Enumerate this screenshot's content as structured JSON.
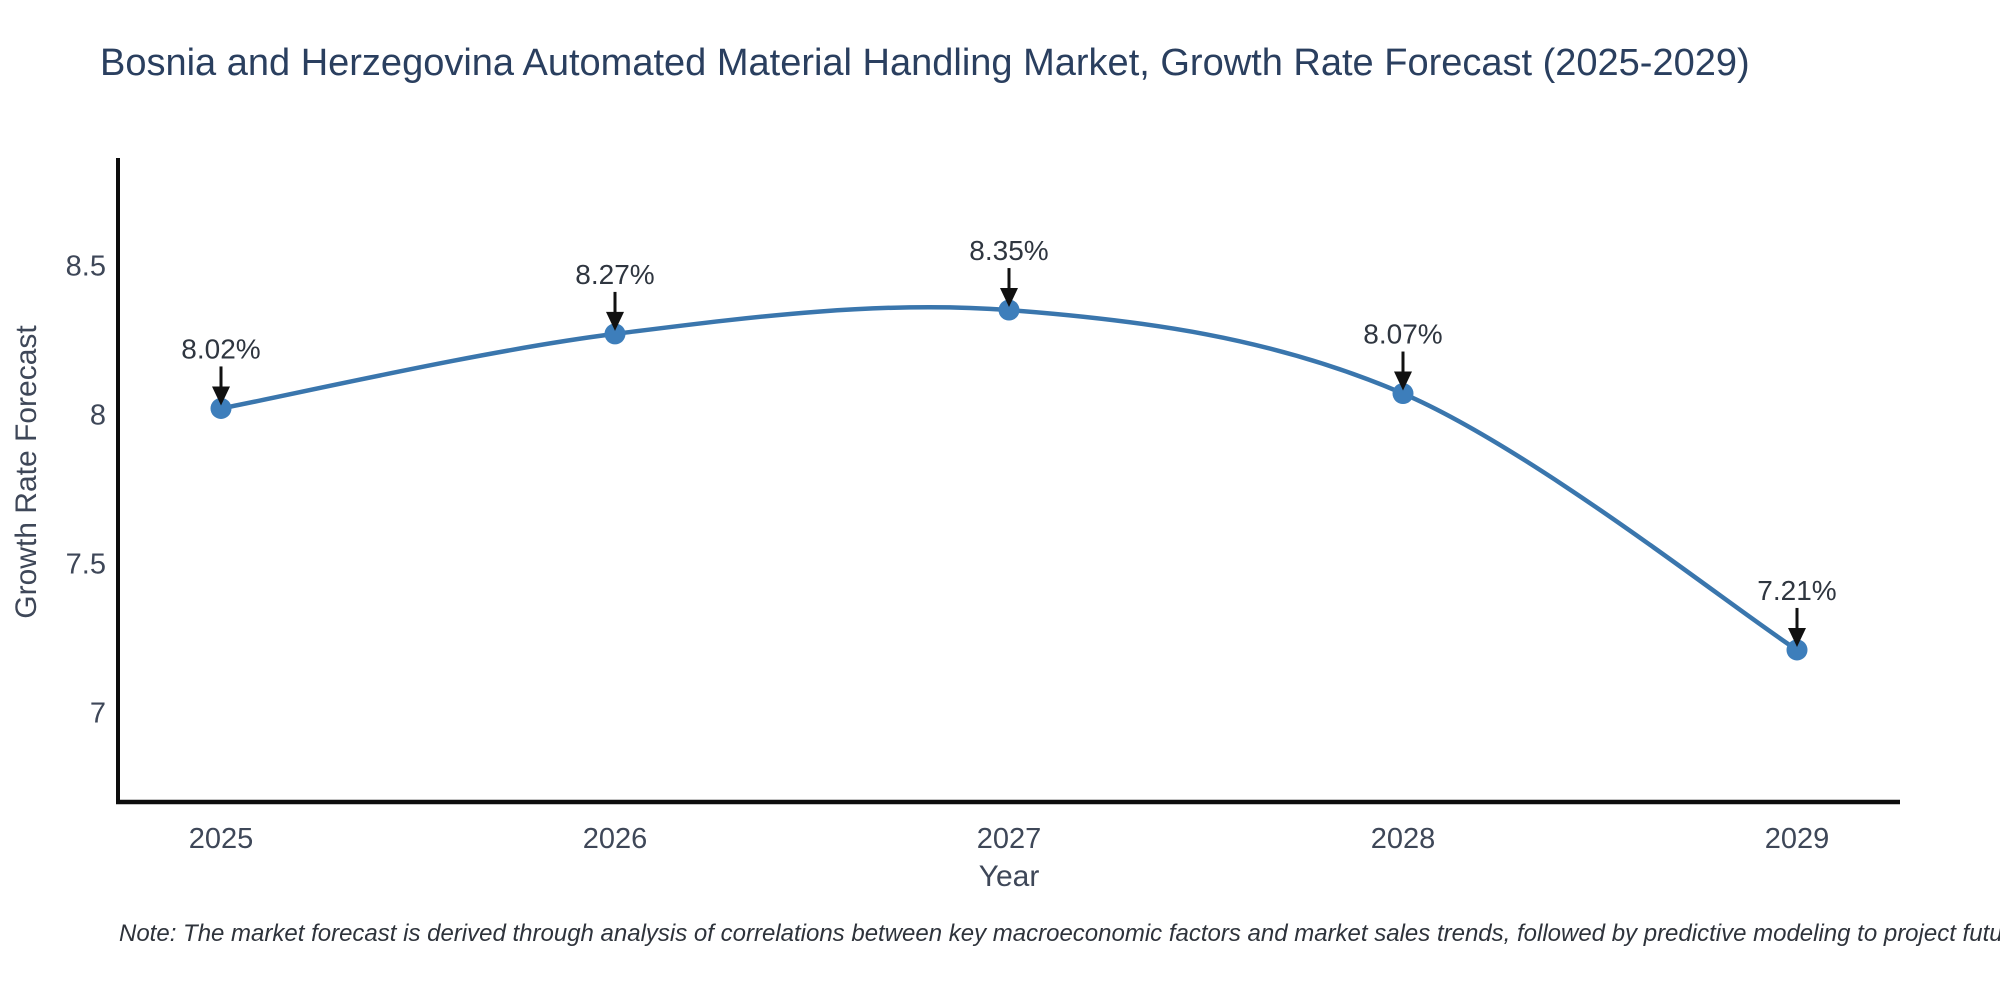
{
  "title": "Bosnia and Herzegovina Automated Material Handling Market, Growth Rate Forecast (2025-2029)",
  "note": "Note: The market forecast is derived through analysis of correlations between key macroeconomic factors and market sales trends, followed by predictive modeling to project future sales",
  "chart_data": {
    "type": "line",
    "title": "Bosnia and Herzegovina Automated Material Handling Market, Growth Rate Forecast (2025-2029)",
    "x": [
      2025,
      2026,
      2027,
      2028,
      2029
    ],
    "series": [
      {
        "name": "Growth Rate Forecast",
        "values": [
          8.02,
          8.27,
          8.35,
          8.07,
          7.21
        ]
      }
    ],
    "point_labels": [
      "8.02%",
      "8.27%",
      "8.35%",
      "8.07%",
      "7.21%"
    ],
    "xlabel": "Year",
    "ylabel": "Growth Rate Forecast",
    "yticks": [
      7,
      7.5,
      8,
      8.5
    ],
    "ylim": [
      6.7,
      8.86
    ],
    "grid": false,
    "legend_position": "none",
    "line_shape": "spline",
    "colors": {
      "line": "#3a76ad",
      "marker": "#3d7ebb",
      "axis": "#0d0d0d",
      "tick_text": "#3e4758",
      "annotation_text": "#2f3640",
      "annotation_arrow": "#111111"
    }
  }
}
